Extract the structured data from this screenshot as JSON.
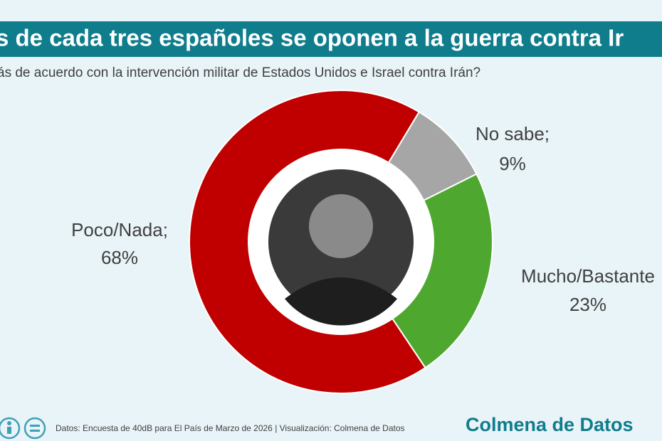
{
  "chart_data": {
    "type": "donut",
    "title": "s de cada tres españoles se oponen a la guerra contra Ir",
    "subtitle": "ás de acuerdo con la intervención militar de Estados Unidos e Israel contra Irán?",
    "categories": [
      "No sabe;",
      "Mucho/Bastante",
      "Poco/Nada;"
    ],
    "values": [
      9,
      23,
      68
    ],
    "value_labels": [
      "9%",
      "23%",
      "68%"
    ],
    "colors": [
      "#a6a6a6",
      "#4ea72e",
      "#c00000"
    ],
    "source": "Datos: Encuesta de 40dB para El País de Marzo de 2026 | Visualización: Colmena de Datos",
    "brand": "Colmena de Datos"
  }
}
